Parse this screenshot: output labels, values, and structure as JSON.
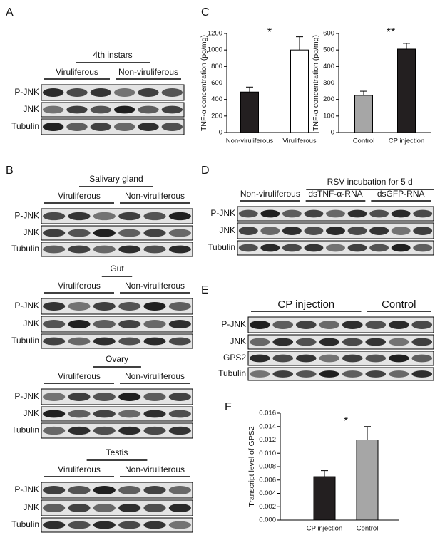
{
  "panel_labels": [
    "A",
    "B",
    "C",
    "D",
    "E",
    "F"
  ],
  "blots": [
    {
      "title": "4th instars",
      "groups": [
        "Viruliferous",
        "Non-viruliferous"
      ],
      "rows": [
        "P-JNK",
        "JNK",
        "Tubulin"
      ]
    },
    {
      "title": "Salivary gland",
      "groups": [
        "Viruliferous",
        "Non-viruliferous"
      ],
      "rows": [
        "P-JNK",
        "JNK",
        "Tubulin"
      ]
    },
    {
      "title": "Gut",
      "groups": [
        "Viruliferous",
        "Non-viruliferous"
      ],
      "rows": [
        "P-JNK",
        "JNK",
        "Tubulin"
      ]
    },
    {
      "title": "Ovary",
      "groups": [
        "Viruliferous",
        "Non-viruliferous"
      ],
      "rows": [
        "P-JNK",
        "JNK",
        "Tubulin"
      ]
    },
    {
      "title": "Testis",
      "groups": [
        "Viruliferous",
        "Non-viruliferous"
      ],
      "rows": [
        "P-JNK",
        "JNK",
        "Tubulin"
      ]
    },
    {
      "title": "RSV incubation for 5 d",
      "groups": [
        "Non-viruliferous",
        "dsTNF-α-RNA",
        "dsGFP-RNA"
      ],
      "rows": [
        "P-JNK",
        "JNK",
        "Tubulin"
      ]
    },
    {
      "groups": [
        "CP injection",
        "Control"
      ],
      "rows": [
        "P-JNK",
        "JNK",
        "GPS2",
        "Tubulin"
      ]
    }
  ],
  "chart_data": [
    {
      "type": "bar",
      "y_label": "TNF-α concentration (pg/mg)",
      "annotation": "*",
      "categories": [
        "Non-viruliferous",
        "Viruliferous"
      ],
      "values": [
        490,
        1000
      ],
      "errors": [
        60,
        160
      ],
      "colors": [
        "#231f20",
        "#ffffff"
      ],
      "ylim": [
        0,
        1200
      ],
      "yticks": [
        0,
        200,
        400,
        600,
        800,
        1000,
        1200
      ]
    },
    {
      "type": "bar",
      "y_label": "TNF-α concentration (pg/mg)",
      "annotation": "**",
      "categories": [
        "Control",
        "CP injection"
      ],
      "values": [
        225,
        505
      ],
      "errors": [
        25,
        35
      ],
      "colors": [
        "#a6a6a6",
        "#231f20"
      ],
      "ylim": [
        0,
        600
      ],
      "yticks": [
        0,
        100,
        200,
        300,
        400,
        500,
        600
      ]
    },
    {
      "type": "bar",
      "y_label": "Transcript level of GPS2",
      "annotation": "*",
      "categories": [
        "CP injection",
        "Control"
      ],
      "values": [
        0.0065,
        0.012
      ],
      "errors": [
        0.0009,
        0.002
      ],
      "colors": [
        "#231f20",
        "#a6a6a6"
      ],
      "ylim": [
        0,
        0.016
      ],
      "yticks": [
        {
          "value": 0,
          "label": "0.000"
        },
        {
          "value": 0.002,
          "label": "0.002"
        },
        {
          "value": 0.004,
          "label": "0.004"
        },
        {
          "value": 0.006,
          "label": "0.006"
        },
        {
          "value": 0.008,
          "label": "0.008"
        },
        {
          "value": 0.01,
          "label": "0.010"
        },
        {
          "value": 0.012,
          "label": "0.012"
        },
        {
          "value": 0.014,
          "label": "0.014"
        },
        {
          "value": 0.016,
          "label": "0.016"
        }
      ]
    }
  ]
}
